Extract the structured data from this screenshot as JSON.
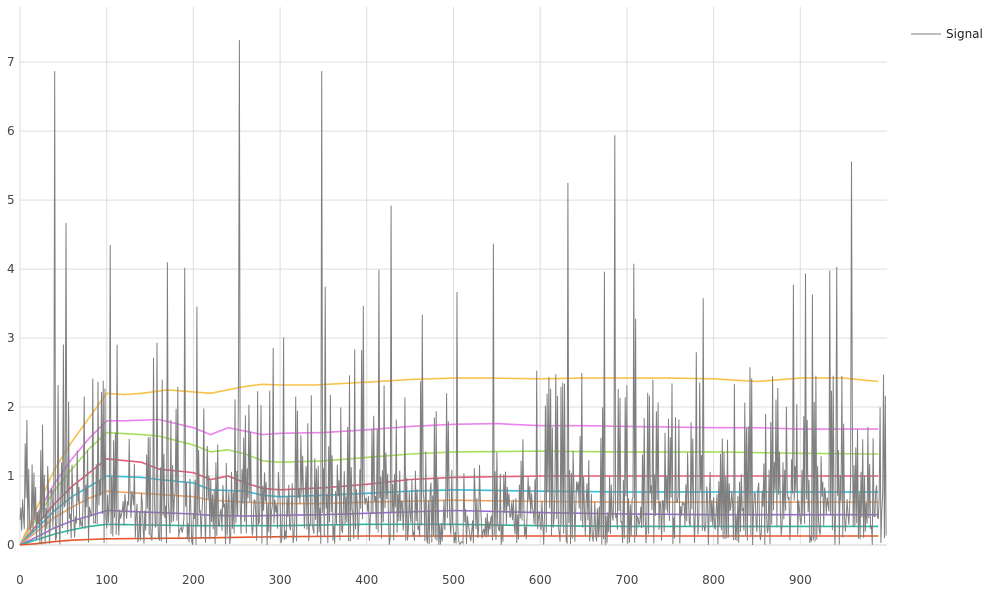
{
  "chart_data": {
    "type": "line",
    "title": "",
    "xlabel": "",
    "ylabel": "",
    "xlim": [
      0,
      1000
    ],
    "ylim": [
      0,
      7.8
    ],
    "x_ticks": [
      0,
      100,
      200,
      300,
      400,
      500,
      600,
      700,
      800,
      900
    ],
    "y_ticks": [
      0,
      1,
      2,
      3,
      4,
      5,
      6,
      7
    ],
    "grid": true,
    "legend": {
      "position": "top-right",
      "entries": [
        "Signal"
      ]
    },
    "signal": {
      "name": "Signal",
      "color": "#7f7f7f",
      "x_start": 0,
      "x_end": 999,
      "sample_count": 1000,
      "y_min": 0,
      "y_max": 7.32,
      "peaks": [
        {
          "x": 40,
          "y": 6.87
        },
        {
          "x": 53,
          "y": 4.67
        },
        {
          "x": 104,
          "y": 4.35
        },
        {
          "x": 170,
          "y": 4.1
        },
        {
          "x": 190,
          "y": 4.02
        },
        {
          "x": 253,
          "y": 7.32
        },
        {
          "x": 348,
          "y": 6.87
        },
        {
          "x": 428,
          "y": 4.92
        },
        {
          "x": 546,
          "y": 4.37
        },
        {
          "x": 632,
          "y": 5.25
        },
        {
          "x": 686,
          "y": 5.94
        },
        {
          "x": 959,
          "y": 5.56
        }
      ]
    },
    "series": [
      {
        "color": "#f7c34b",
        "x": [
          0,
          20,
          40,
          60,
          80,
          100,
          120,
          140,
          160,
          170,
          200,
          220,
          240,
          260,
          280,
          300,
          340,
          400,
          450,
          500,
          540,
          600,
          650,
          700,
          750,
          800,
          850,
          900,
          950,
          990
        ],
        "y": [
          0,
          0.55,
          1.1,
          1.5,
          1.85,
          2.2,
          2.18,
          2.2,
          2.23,
          2.25,
          2.22,
          2.2,
          2.25,
          2.3,
          2.33,
          2.32,
          2.32,
          2.36,
          2.4,
          2.42,
          2.42,
          2.41,
          2.42,
          2.42,
          2.42,
          2.41,
          2.37,
          2.42,
          2.42,
          2.37
        ]
      },
      {
        "color": "#ee82ee",
        "x": [
          0,
          20,
          40,
          60,
          80,
          100,
          120,
          160,
          200,
          220,
          240,
          260,
          280,
          300,
          350,
          400,
          450,
          500,
          550,
          600,
          650,
          700,
          750,
          800,
          850,
          900,
          950,
          990
        ],
        "y": [
          0,
          0.45,
          0.9,
          1.25,
          1.55,
          1.8,
          1.8,
          1.82,
          1.7,
          1.6,
          1.7,
          1.65,
          1.6,
          1.62,
          1.63,
          1.67,
          1.72,
          1.75,
          1.76,
          1.73,
          1.73,
          1.72,
          1.71,
          1.7,
          1.7,
          1.68,
          1.68,
          1.68
        ]
      },
      {
        "color": "#a6e05b",
        "x": [
          0,
          20,
          40,
          60,
          80,
          100,
          140,
          160,
          200,
          220,
          240,
          260,
          280,
          300,
          350,
          400,
          450,
          500,
          600,
          700,
          800,
          900,
          990
        ],
        "y": [
          0,
          0.4,
          0.8,
          1.1,
          1.4,
          1.63,
          1.6,
          1.58,
          1.45,
          1.35,
          1.38,
          1.32,
          1.22,
          1.2,
          1.22,
          1.27,
          1.32,
          1.35,
          1.36,
          1.35,
          1.35,
          1.33,
          1.32
        ]
      },
      {
        "color": "#e95a78",
        "x": [
          0,
          20,
          40,
          60,
          80,
          100,
          140,
          160,
          200,
          220,
          240,
          260,
          280,
          300,
          350,
          400,
          450,
          500,
          600,
          700,
          800,
          900,
          990
        ],
        "y": [
          0,
          0.3,
          0.6,
          0.85,
          1.05,
          1.25,
          1.2,
          1.1,
          1.05,
          0.95,
          1.0,
          0.9,
          0.82,
          0.8,
          0.83,
          0.88,
          0.95,
          0.98,
          1.0,
          1.0,
          1.0,
          1.0,
          1.0
        ]
      },
      {
        "color": "#33c0dc",
        "x": [
          0,
          20,
          40,
          60,
          80,
          100,
          140,
          160,
          200,
          220,
          260,
          280,
          300,
          350,
          400,
          450,
          500,
          600,
          700,
          800,
          900,
          990
        ],
        "y": [
          0,
          0.25,
          0.5,
          0.7,
          0.85,
          1.0,
          0.98,
          0.95,
          0.9,
          0.8,
          0.78,
          0.72,
          0.7,
          0.72,
          0.75,
          0.78,
          0.8,
          0.78,
          0.77,
          0.77,
          0.77,
          0.77
        ]
      },
      {
        "color": "#f4a460",
        "x": [
          0,
          20,
          40,
          60,
          80,
          100,
          140,
          200,
          220,
          260,
          300,
          350,
          400,
          500,
          600,
          700,
          800,
          900,
          990
        ],
        "y": [
          0,
          0.2,
          0.4,
          0.55,
          0.68,
          0.78,
          0.75,
          0.7,
          0.65,
          0.62,
          0.6,
          0.6,
          0.62,
          0.65,
          0.63,
          0.62,
          0.62,
          0.62,
          0.62
        ]
      },
      {
        "color": "#9c6ade",
        "x": [
          0,
          20,
          40,
          60,
          80,
          100,
          140,
          200,
          220,
          260,
          300,
          350,
          400,
          500,
          600,
          700,
          800,
          900,
          990
        ],
        "y": [
          0,
          0.12,
          0.25,
          0.35,
          0.42,
          0.5,
          0.48,
          0.45,
          0.43,
          0.42,
          0.43,
          0.44,
          0.46,
          0.5,
          0.47,
          0.45,
          0.44,
          0.44,
          0.44
        ]
      },
      {
        "color": "#2cb8a0",
        "x": [
          0,
          20,
          40,
          60,
          80,
          100,
          200,
          300,
          400,
          500,
          600,
          700,
          800,
          900,
          990
        ],
        "y": [
          0,
          0.08,
          0.16,
          0.22,
          0.27,
          0.3,
          0.28,
          0.28,
          0.3,
          0.3,
          0.28,
          0.27,
          0.27,
          0.27,
          0.27
        ]
      },
      {
        "color": "#e8542a",
        "x": [
          0,
          20,
          40,
          60,
          80,
          100,
          200,
          300,
          400,
          500,
          600,
          700,
          800,
          900,
          990
        ],
        "y": [
          0,
          0.02,
          0.05,
          0.07,
          0.08,
          0.09,
          0.1,
          0.12,
          0.13,
          0.13,
          0.13,
          0.13,
          0.13,
          0.13,
          0.13
        ]
      }
    ]
  }
}
